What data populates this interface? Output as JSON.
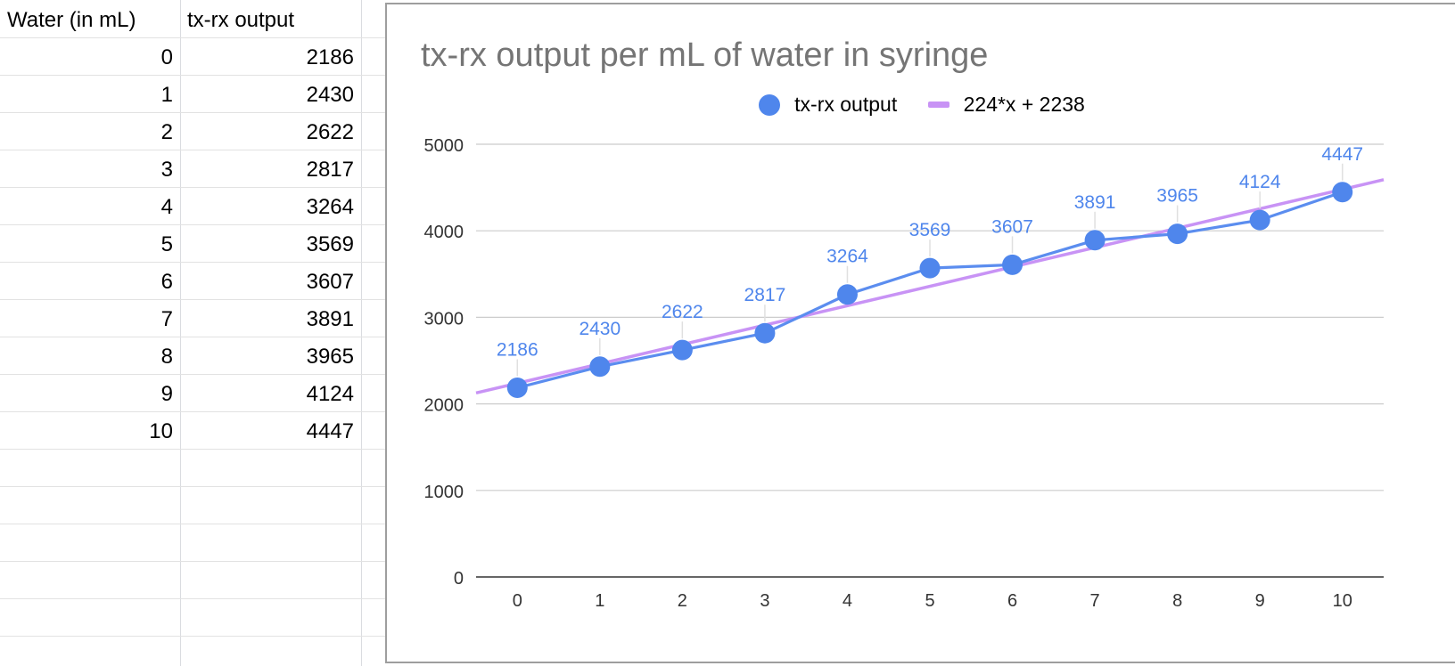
{
  "colors": {
    "series": "#5b8def",
    "series_dot": "#4f86ec",
    "trend": "#c893f5",
    "title": "#757575",
    "grid": "#cccccc",
    "axis": "#333333"
  },
  "sheet": {
    "headers": [
      "Water (in mL)",
      "tx-rx output"
    ],
    "rows": [
      [
        "0",
        "2186"
      ],
      [
        "1",
        "2430"
      ],
      [
        "2",
        "2622"
      ],
      [
        "3",
        "2817"
      ],
      [
        "4",
        "3264"
      ],
      [
        "5",
        "3569"
      ],
      [
        "6",
        "3607"
      ],
      [
        "7",
        "3891"
      ],
      [
        "8",
        "3965"
      ],
      [
        "9",
        "4124"
      ],
      [
        "10",
        "4447"
      ]
    ]
  },
  "chart_data": {
    "type": "line",
    "title": "tx-rx output per mL of water in syringe",
    "xlabel": "",
    "ylabel": "",
    "x": [
      0,
      1,
      2,
      3,
      4,
      5,
      6,
      7,
      8,
      9,
      10
    ],
    "x_tick_labels": [
      "0",
      "1",
      "2",
      "3",
      "4",
      "5",
      "6",
      "7",
      "8",
      "9",
      "10"
    ],
    "y_tick_labels": [
      "0",
      "1000",
      "2000",
      "3000",
      "4000",
      "5000"
    ],
    "ylim": [
      0,
      5000
    ],
    "xlim": [
      -0.5,
      10.5
    ],
    "grid": true,
    "legend_position": "top",
    "series": [
      {
        "name": "tx-rx output",
        "markers": true,
        "data_labels": true,
        "values": [
          2186,
          2430,
          2622,
          2817,
          3264,
          3569,
          3607,
          3891,
          3965,
          4124,
          4447
        ]
      }
    ],
    "trendline": {
      "name": "224*x + 2238",
      "slope": 224,
      "intercept": 2238
    }
  }
}
